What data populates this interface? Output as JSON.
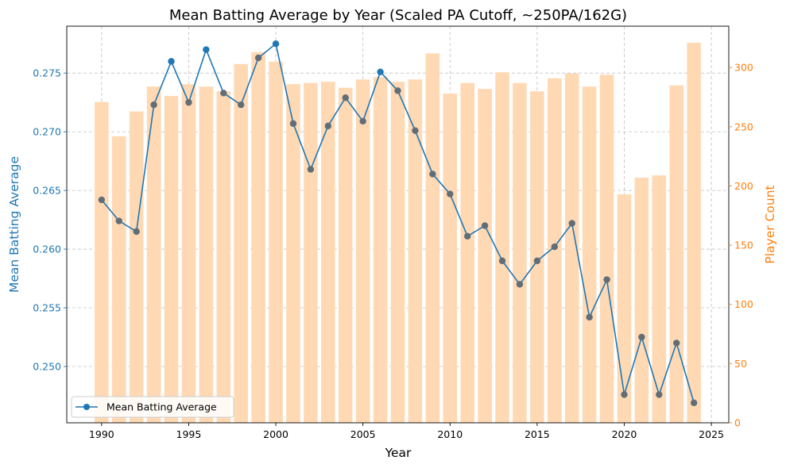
{
  "chart_data": {
    "type": "bar+line",
    "title": "Mean Batting Average by Year (Scaled PA Cutoff, ~250PA/162G)",
    "xlabel": "Year",
    "ylabel_left": "Mean Batting Average",
    "ylabel_right": "Player Count",
    "xlim": [
      1988,
      2026
    ],
    "ylim_left": [
      0.2452,
      0.279
    ],
    "ylim_right": [
      0,
      335
    ],
    "x_ticks": [
      1990,
      1995,
      2000,
      2005,
      2010,
      2015,
      2020,
      2025
    ],
    "y_left_ticks": [
      0.25,
      0.255,
      0.26,
      0.265,
      0.27,
      0.275
    ],
    "y_right_ticks": [
      0,
      50,
      100,
      150,
      200,
      250,
      300
    ],
    "grid": true,
    "legend": {
      "position": "lower-left",
      "entries": [
        "Mean Batting Average"
      ]
    },
    "colors": {
      "line": "#1f77b4",
      "bar": "#ffd9b3",
      "right_axis": "#ff7f0e",
      "marker_over_bar": "#616e77"
    },
    "x": [
      1990,
      1991,
      1992,
      1993,
      1994,
      1995,
      1996,
      1997,
      1998,
      1999,
      2000,
      2001,
      2002,
      2003,
      2004,
      2005,
      2006,
      2007,
      2008,
      2009,
      2010,
      2011,
      2012,
      2013,
      2014,
      2015,
      2016,
      2017,
      2018,
      2019,
      2020,
      2021,
      2022,
      2023,
      2024
    ],
    "series": [
      {
        "name": "Mean Batting Average",
        "axis": "left",
        "kind": "line",
        "values": [
          0.2642,
          0.2624,
          0.2615,
          0.2723,
          0.276,
          0.2725,
          0.277,
          0.2733,
          0.2723,
          0.2763,
          0.2775,
          0.2707,
          0.2668,
          0.2705,
          0.2729,
          0.2709,
          0.2751,
          0.2735,
          0.2701,
          0.2664,
          0.2647,
          0.2611,
          0.262,
          0.259,
          0.257,
          0.259,
          0.2602,
          0.2622,
          0.2542,
          0.2574,
          0.2476,
          0.2525,
          0.2476,
          0.252,
          0.2469
        ]
      },
      {
        "name": "Player Count",
        "axis": "right",
        "kind": "bar",
        "values": [
          271,
          242,
          263,
          284,
          276,
          286,
          284,
          280,
          303,
          313,
          305,
          286,
          287,
          288,
          283,
          290,
          292,
          288,
          290,
          312,
          278,
          287,
          282,
          296,
          287,
          280,
          291,
          295,
          284,
          294,
          193,
          207,
          209,
          285,
          321
        ]
      }
    ]
  }
}
